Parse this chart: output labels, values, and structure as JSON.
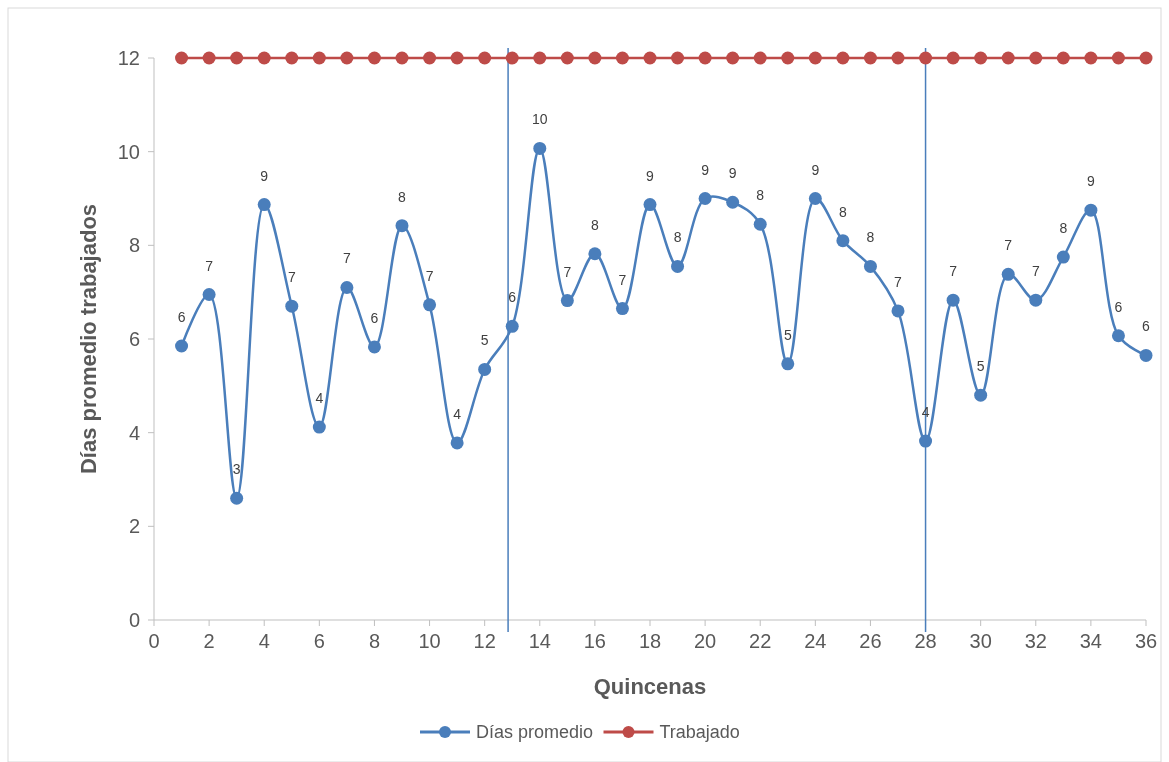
{
  "chart_data": {
    "type": "line",
    "xlabel": "Quincenas",
    "ylabel": "Días promedio trabajados",
    "x": [
      1,
      2,
      3,
      4,
      5,
      6,
      7,
      8,
      9,
      10,
      11,
      12,
      13,
      14,
      15,
      16,
      17,
      18,
      19,
      20,
      21,
      22,
      23,
      24,
      25,
      26,
      27,
      28,
      29,
      30,
      31,
      32,
      33,
      34,
      35,
      36
    ],
    "series": [
      {
        "name": "Días promedio",
        "color": "#4a7ebb",
        "values": [
          5.85,
          6.95,
          2.6,
          8.87,
          6.7,
          4.12,
          7.1,
          5.83,
          8.42,
          6.73,
          3.78,
          5.35,
          6.27,
          10.07,
          6.82,
          7.82,
          6.65,
          8.87,
          7.55,
          9.0,
          8.92,
          8.45,
          5.47,
          9.0,
          8.1,
          7.55,
          6.6,
          3.82,
          6.83,
          4.8,
          7.38,
          6.83,
          7.75,
          8.75,
          6.07,
          5.65
        ],
        "value_labels": [
          "6",
          "7",
          "3",
          "9",
          "7",
          "4",
          "7",
          "6",
          "8",
          "7",
          "4",
          "5",
          "6",
          "10",
          "7",
          "8",
          "7",
          "9",
          "8",
          "9",
          "9",
          "8",
          "5",
          "9",
          "8",
          "8",
          "7",
          "4",
          "7",
          "5",
          "7",
          "7",
          "8",
          "9",
          "6",
          "6"
        ]
      },
      {
        "name": "Trabajado",
        "color": "#be4b48",
        "values": [
          12,
          12,
          12,
          12,
          12,
          12,
          12,
          12,
          12,
          12,
          12,
          12,
          12,
          12,
          12,
          12,
          12,
          12,
          12,
          12,
          12,
          12,
          12,
          12,
          12,
          12,
          12,
          12,
          12,
          12,
          12,
          12,
          12,
          12,
          12,
          12
        ]
      }
    ],
    "xlim": [
      0,
      36
    ],
    "xticks": [
      0,
      2,
      4,
      6,
      8,
      10,
      12,
      14,
      16,
      18,
      20,
      22,
      24,
      26,
      28,
      30,
      32,
      34,
      36
    ],
    "ylim": [
      0,
      12
    ],
    "yticks": [
      0,
      2,
      4,
      6,
      8,
      10,
      12
    ],
    "ref_lines": [
      {
        "axis": "x",
        "value": 12.85,
        "color": "#4a7ebb"
      },
      {
        "axis": "x",
        "value": 28,
        "color": "#4a7ebb"
      }
    ],
    "legend": "bottom",
    "marker": "circle",
    "line_style": "solid"
  }
}
